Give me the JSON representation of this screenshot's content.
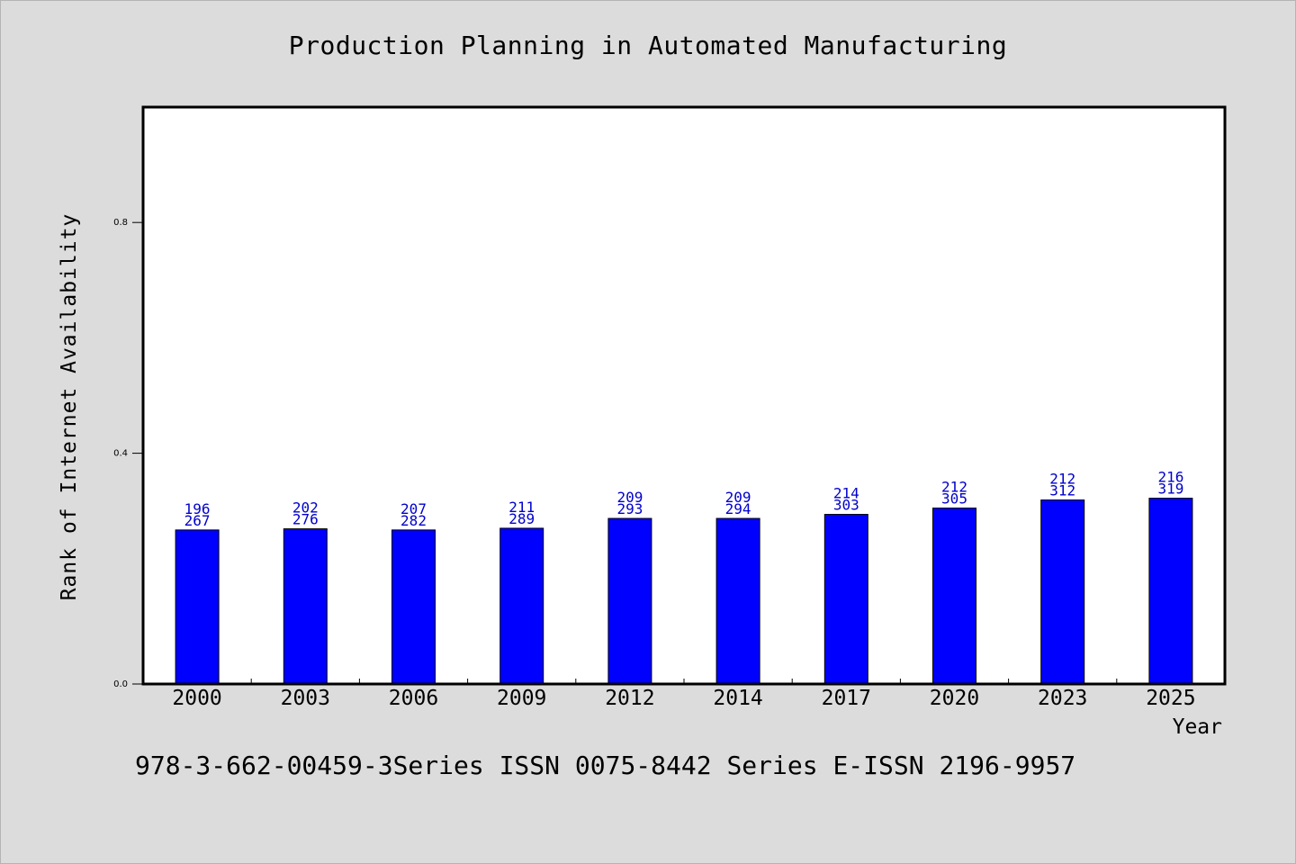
{
  "chart_data": {
    "type": "bar",
    "title": "Production Planning in Automated Manufacturing",
    "xlabel": "Year",
    "ylabel": "Rank of Internet Availability",
    "categories": [
      "2000",
      "2003",
      "2006",
      "2009",
      "2012",
      "2014",
      "2017",
      "2020",
      "2023",
      "2025"
    ],
    "values": [
      0.267,
      0.269,
      0.267,
      0.27,
      0.287,
      0.287,
      0.294,
      0.305,
      0.319,
      0.322
    ],
    "data_labels": [
      [
        "196",
        "267"
      ],
      [
        "202",
        "276"
      ],
      [
        "207",
        "282"
      ],
      [
        "211",
        "289"
      ],
      [
        "209",
        "293"
      ],
      [
        "209",
        "294"
      ],
      [
        "214",
        "303"
      ],
      [
        "212",
        "305"
      ],
      [
        "212",
        "312"
      ],
      [
        "216",
        "319"
      ]
    ],
    "yticks": [
      "0.0",
      "0.4",
      "0.8"
    ],
    "ytick_values": [
      0.0,
      0.4,
      0.8
    ],
    "ylim": [
      0.0,
      1.0
    ],
    "grid": false,
    "legend": "none",
    "colors": {
      "bar": "#0000ff",
      "data_label": "#0000cc",
      "background": "#dcdcdc",
      "plot_background": "#ffffff"
    }
  },
  "footer": "978-3-662-00459-3Series ISSN 0075-8442 Series E-ISSN 2196-9957"
}
